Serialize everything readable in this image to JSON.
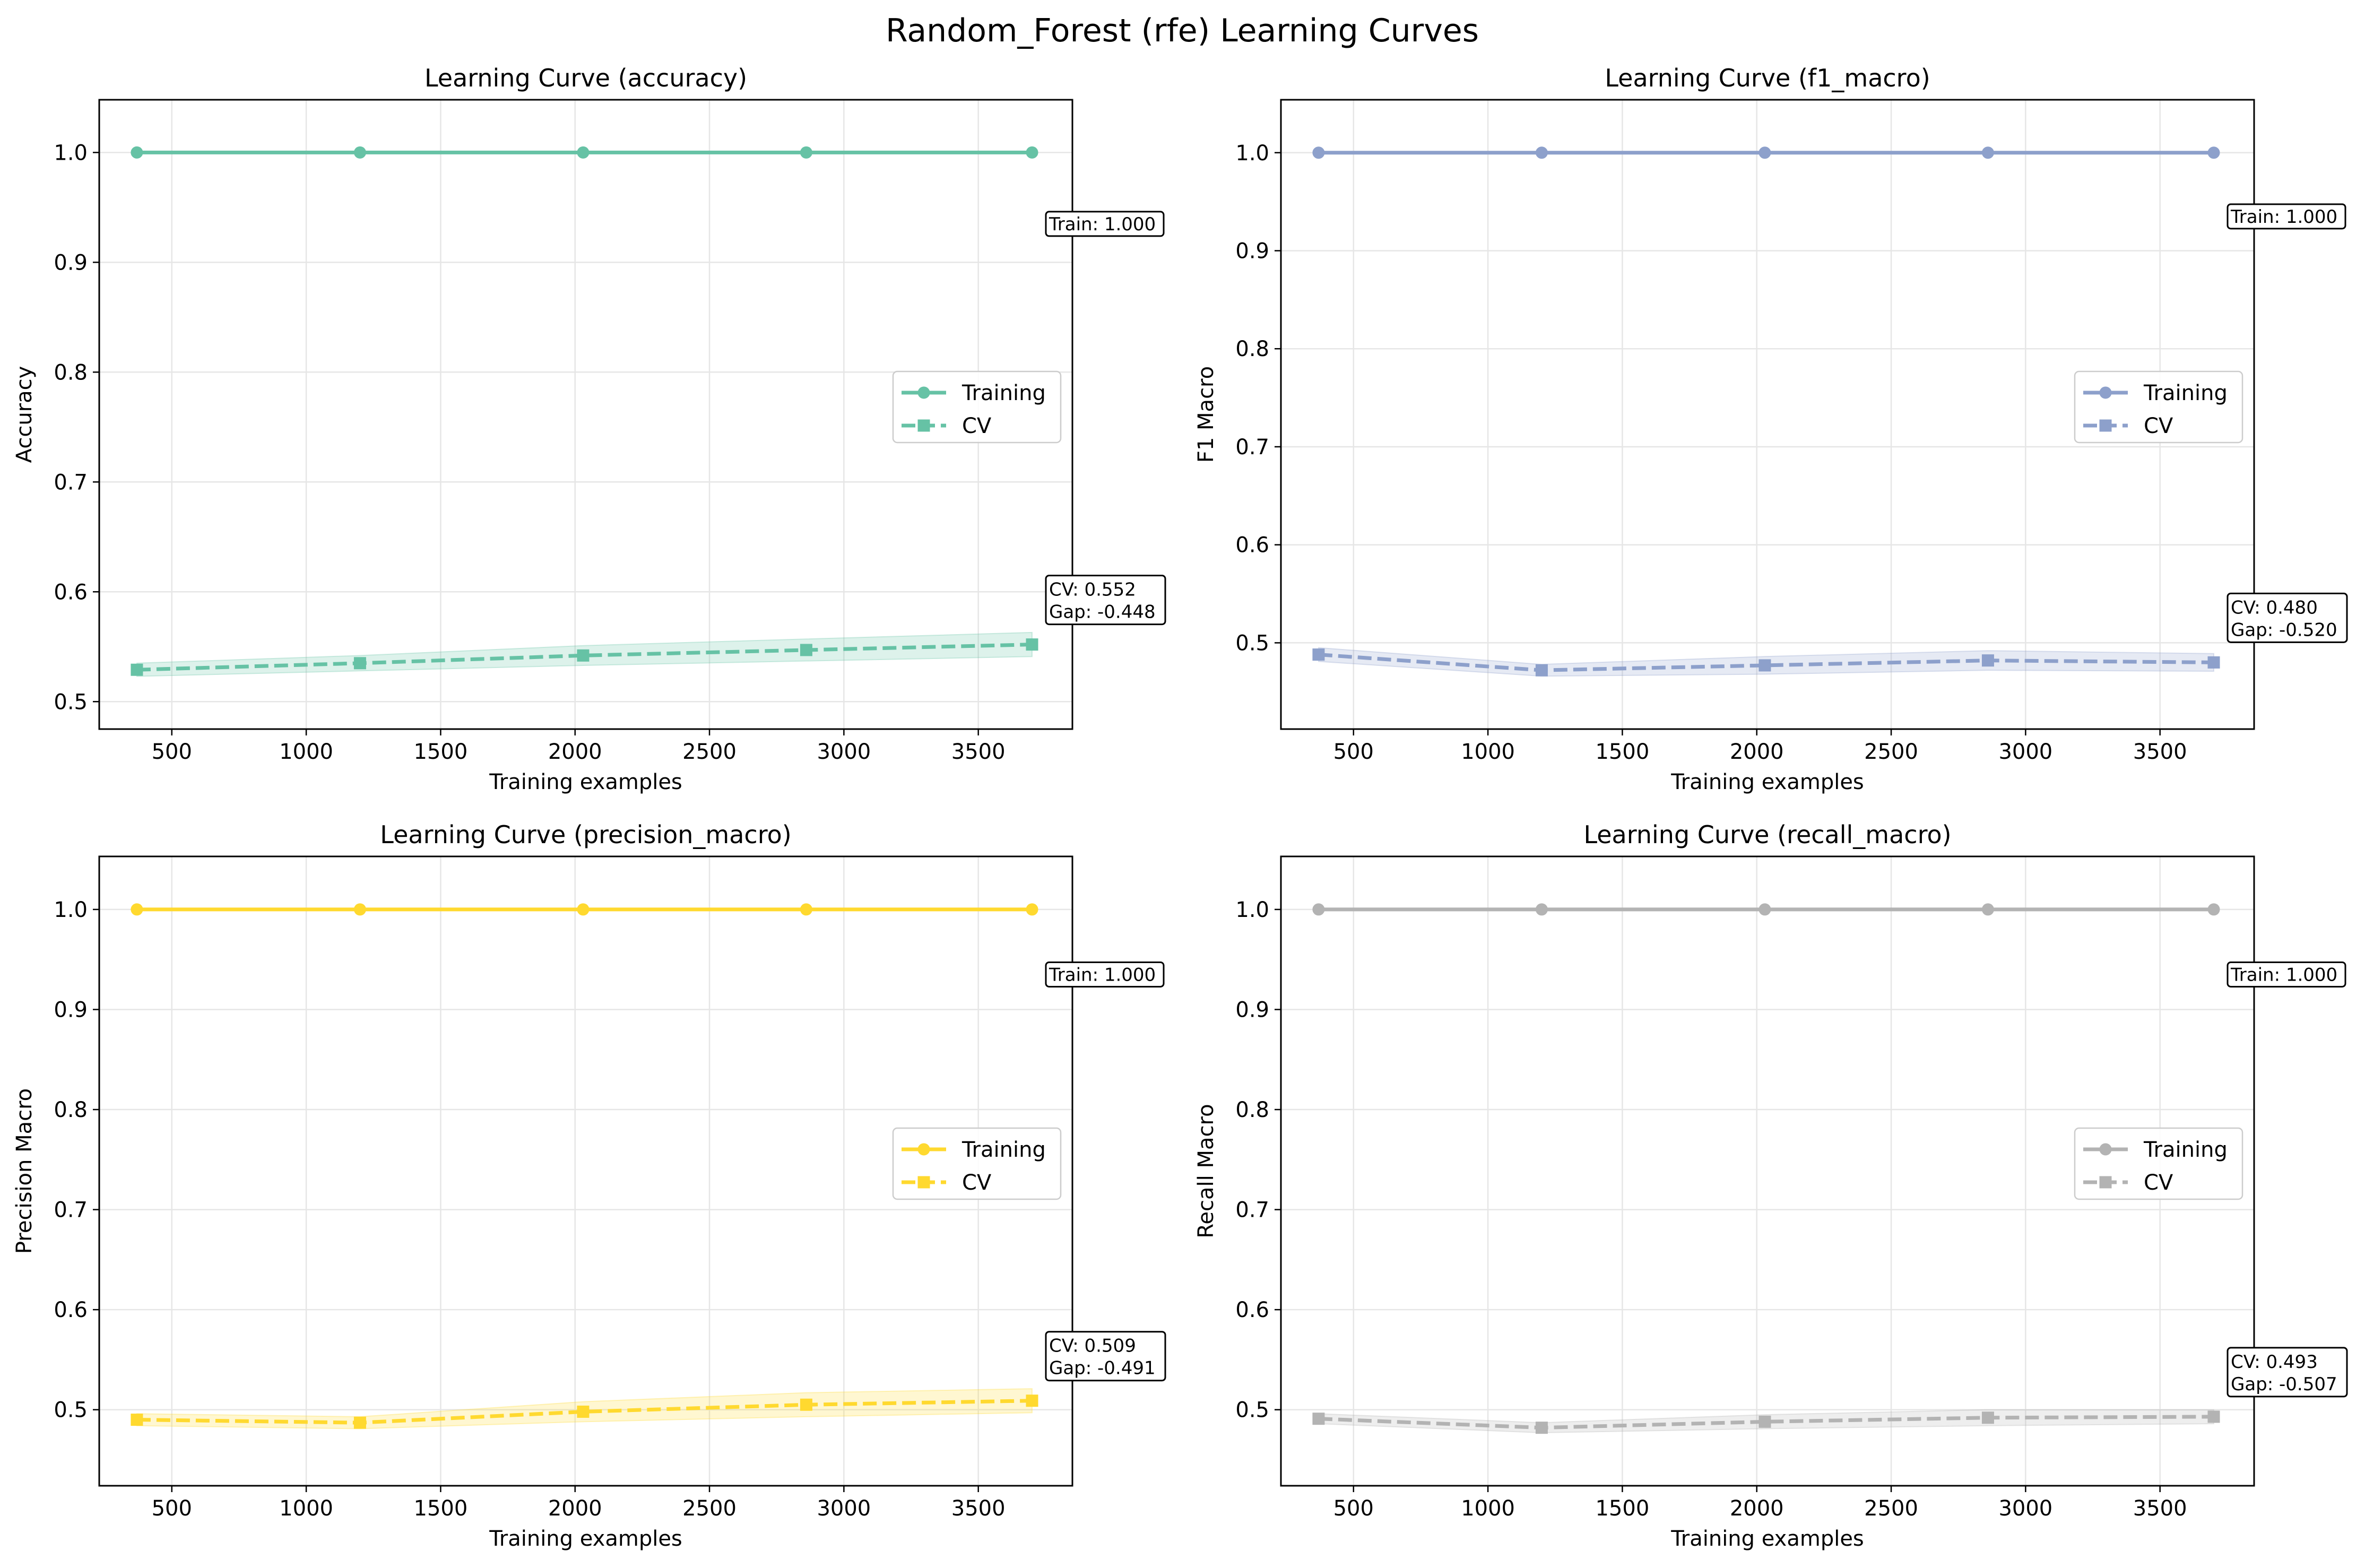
{
  "suptitle": "Random_Forest (rfe) Learning Curves",
  "colors": {
    "accuracy": "#66c2a5",
    "f1_macro": "#8da0cb",
    "precision_macro": "#ffd92f",
    "recall_macro": "#b3b3b3",
    "grid": "#e6e6e6",
    "axis": "#000000"
  },
  "chart_data": [
    {
      "type": "line",
      "title": "Learning Curve (accuracy)",
      "xlabel": "Training examples",
      "ylabel": "Accuracy",
      "xlim": [
        230,
        3850
      ],
      "ylim": [
        0.475,
        1.048
      ],
      "xticks": [
        500,
        1000,
        1500,
        2000,
        2500,
        3000,
        3500
      ],
      "yticks": [
        0.5,
        0.6,
        0.7,
        0.8,
        0.9,
        1.0
      ],
      "x": [
        370,
        1200,
        2030,
        2860,
        3700
      ],
      "series": [
        {
          "name": "Training",
          "values": [
            1.0,
            1.0,
            1.0,
            1.0,
            1.0
          ],
          "std": [
            0,
            0,
            0,
            0,
            0
          ],
          "style": "solid",
          "marker": "circle"
        },
        {
          "name": "CV",
          "values": [
            0.529,
            0.535,
            0.542,
            0.547,
            0.552
          ],
          "std": [
            0.006,
            0.007,
            0.009,
            0.01,
            0.011
          ],
          "style": "dashed",
          "marker": "square"
        }
      ],
      "legend": "center-right",
      "grid": true,
      "annotations": {
        "train": "Train: 1.000",
        "cv": "CV: 0.552",
        "gap": "Gap: -0.448"
      }
    },
    {
      "type": "line",
      "title": "Learning Curve (f1_macro)",
      "xlabel": "Training examples",
      "ylabel": "F1 Macro",
      "xlim": [
        230,
        3850
      ],
      "ylim": [
        0.412,
        1.054
      ],
      "xticks": [
        500,
        1000,
        1500,
        2000,
        2500,
        3000,
        3500
      ],
      "yticks": [
        0.5,
        0.6,
        0.7,
        0.8,
        0.9,
        1.0
      ],
      "x": [
        370,
        1200,
        2030,
        2860,
        3700
      ],
      "series": [
        {
          "name": "Training",
          "values": [
            1.0,
            1.0,
            1.0,
            1.0,
            1.0
          ],
          "std": [
            0,
            0,
            0,
            0,
            0
          ],
          "style": "solid",
          "marker": "circle"
        },
        {
          "name": "CV",
          "values": [
            0.488,
            0.472,
            0.477,
            0.482,
            0.48
          ],
          "std": [
            0.007,
            0.006,
            0.009,
            0.01,
            0.009
          ],
          "style": "dashed",
          "marker": "square"
        }
      ],
      "legend": "center-right",
      "grid": true,
      "annotations": {
        "train": "Train: 1.000",
        "cv": "CV: 0.480",
        "gap": "Gap: -0.520"
      }
    },
    {
      "type": "line",
      "title": "Learning Curve (precision_macro)",
      "xlabel": "Training examples",
      "ylabel": "Precision Macro",
      "xlim": [
        230,
        3850
      ],
      "ylim": [
        0.424,
        1.053
      ],
      "xticks": [
        500,
        1000,
        1500,
        2000,
        2500,
        3000,
        3500
      ],
      "yticks": [
        0.5,
        0.6,
        0.7,
        0.8,
        0.9,
        1.0
      ],
      "x": [
        370,
        1200,
        2030,
        2860,
        3700
      ],
      "series": [
        {
          "name": "Training",
          "values": [
            1.0,
            1.0,
            1.0,
            1.0,
            1.0
          ],
          "std": [
            0,
            0,
            0,
            0,
            0
          ],
          "style": "solid",
          "marker": "circle"
        },
        {
          "name": "CV",
          "values": [
            0.49,
            0.487,
            0.498,
            0.505,
            0.509
          ],
          "std": [
            0.006,
            0.006,
            0.01,
            0.012,
            0.012
          ],
          "style": "dashed",
          "marker": "square"
        }
      ],
      "legend": "center-right",
      "grid": true,
      "annotations": {
        "train": "Train: 1.000",
        "cv": "CV: 0.509",
        "gap": "Gap: -0.491"
      }
    },
    {
      "type": "line",
      "title": "Learning Curve (recall_macro)",
      "xlabel": "Training examples",
      "ylabel": "Recall Macro",
      "xlim": [
        230,
        3850
      ],
      "ylim": [
        0.424,
        1.053
      ],
      "xticks": [
        500,
        1000,
        1500,
        2000,
        2500,
        3000,
        3500
      ],
      "yticks": [
        0.5,
        0.6,
        0.7,
        0.8,
        0.9,
        1.0
      ],
      "x": [
        370,
        1200,
        2030,
        2860,
        3700
      ],
      "series": [
        {
          "name": "Training",
          "values": [
            1.0,
            1.0,
            1.0,
            1.0,
            1.0
          ],
          "std": [
            0,
            0,
            0,
            0,
            0
          ],
          "style": "solid",
          "marker": "circle"
        },
        {
          "name": "CV",
          "values": [
            0.491,
            0.482,
            0.488,
            0.492,
            0.493
          ],
          "std": [
            0.005,
            0.005,
            0.007,
            0.008,
            0.007
          ],
          "style": "dashed",
          "marker": "square"
        }
      ],
      "legend": "center-right",
      "grid": true,
      "annotations": {
        "train": "Train: 1.000",
        "cv": "CV: 0.493",
        "gap": "Gap: -0.507"
      }
    }
  ]
}
